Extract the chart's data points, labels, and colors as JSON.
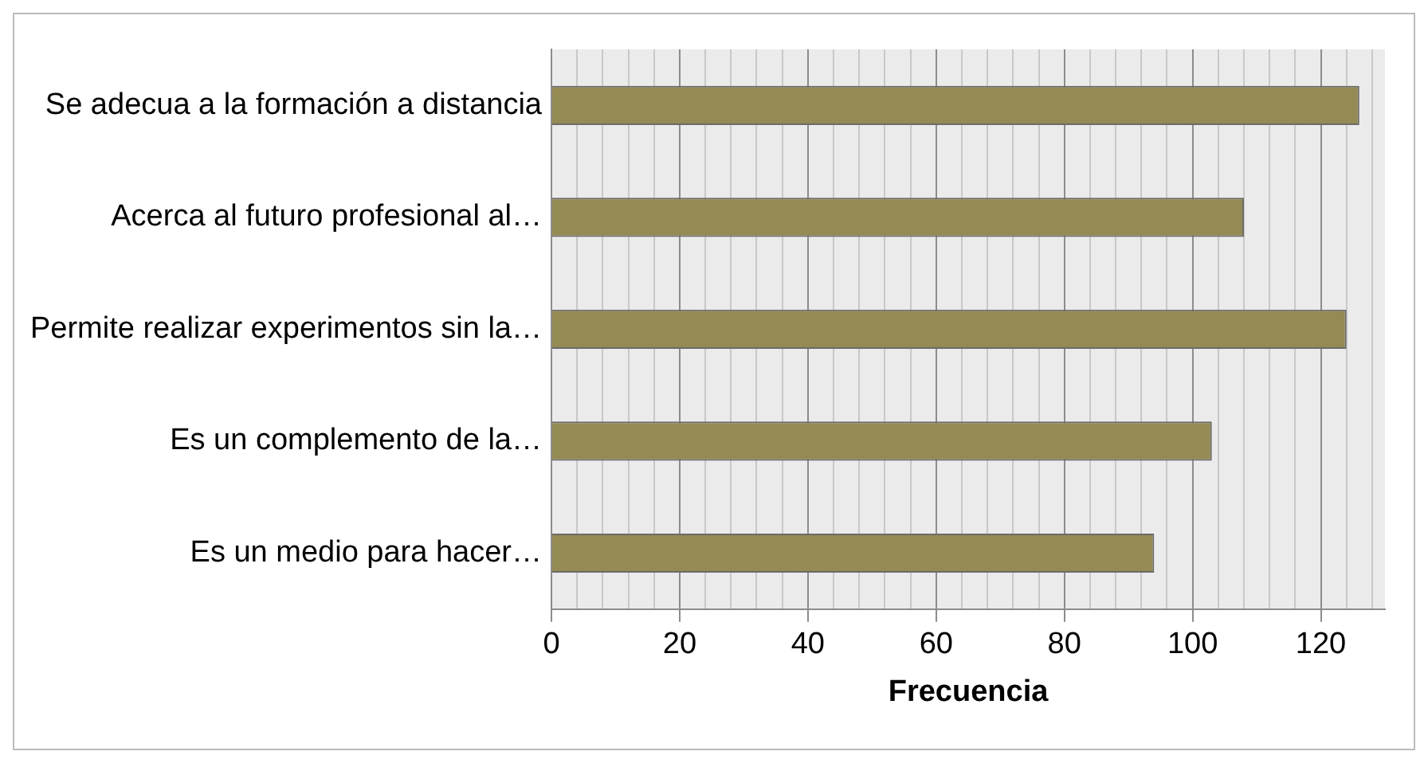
{
  "chart_data": {
    "type": "bar",
    "orientation": "horizontal",
    "xlabel": "Frecuencia",
    "categories": [
      "Se adecua a la formación a distancia",
      "Acerca al futuro profesional al…",
      "Permite realizar experimentos sin la…",
      "Es un complemento de la…",
      "Es un medio para hacer…"
    ],
    "values": [
      126,
      108,
      124,
      103,
      94
    ],
    "color": "#948a54",
    "xlim": [
      0,
      130
    ],
    "xticks": [
      0,
      {
        "value": 4,
        "label": null
      },
      {
        "value": 8,
        "label": null
      },
      {
        "value": 12,
        "label": null
      },
      {
        "value": 16,
        "label": null
      },
      20,
      {
        "value": 24,
        "label": null
      },
      {
        "value": 28,
        "label": null
      },
      {
        "value": 32,
        "label": null
      },
      {
        "value": 36,
        "label": null
      },
      40,
      {
        "value": 44,
        "label": null
      },
      {
        "value": 48,
        "label": null
      },
      {
        "value": 52,
        "label": null
      },
      {
        "value": 56,
        "label": null
      },
      60,
      {
        "value": 64,
        "label": null
      },
      {
        "value": 68,
        "label": null
      },
      {
        "value": 72,
        "label": null
      },
      {
        "value": 76,
        "label": null
      },
      80,
      {
        "value": 84,
        "label": null
      },
      {
        "value": 88,
        "label": null
      },
      {
        "value": 92,
        "label": null
      },
      {
        "value": 96,
        "label": null
      },
      100,
      {
        "value": 104,
        "label": null
      },
      {
        "value": 108,
        "label": null
      },
      {
        "value": 112,
        "label": null
      },
      {
        "value": 116,
        "label": null
      },
      120,
      {
        "value": 124,
        "label": null
      },
      {
        "value": 128,
        "label": null
      }
    ],
    "grid": true,
    "legend": false
  }
}
